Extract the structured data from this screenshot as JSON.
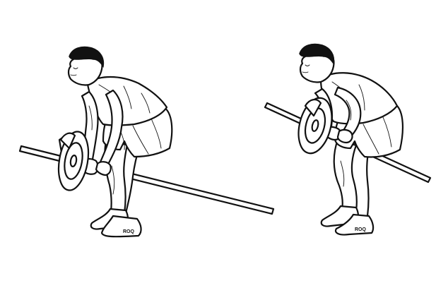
{
  "figures": [
    {
      "id": "start-position",
      "shoe_brand": "ROQ"
    },
    {
      "id": "end-position",
      "shoe_brand": "ROQ"
    }
  ],
  "colors": {
    "ink": "#111111",
    "background": "#ffffff"
  }
}
